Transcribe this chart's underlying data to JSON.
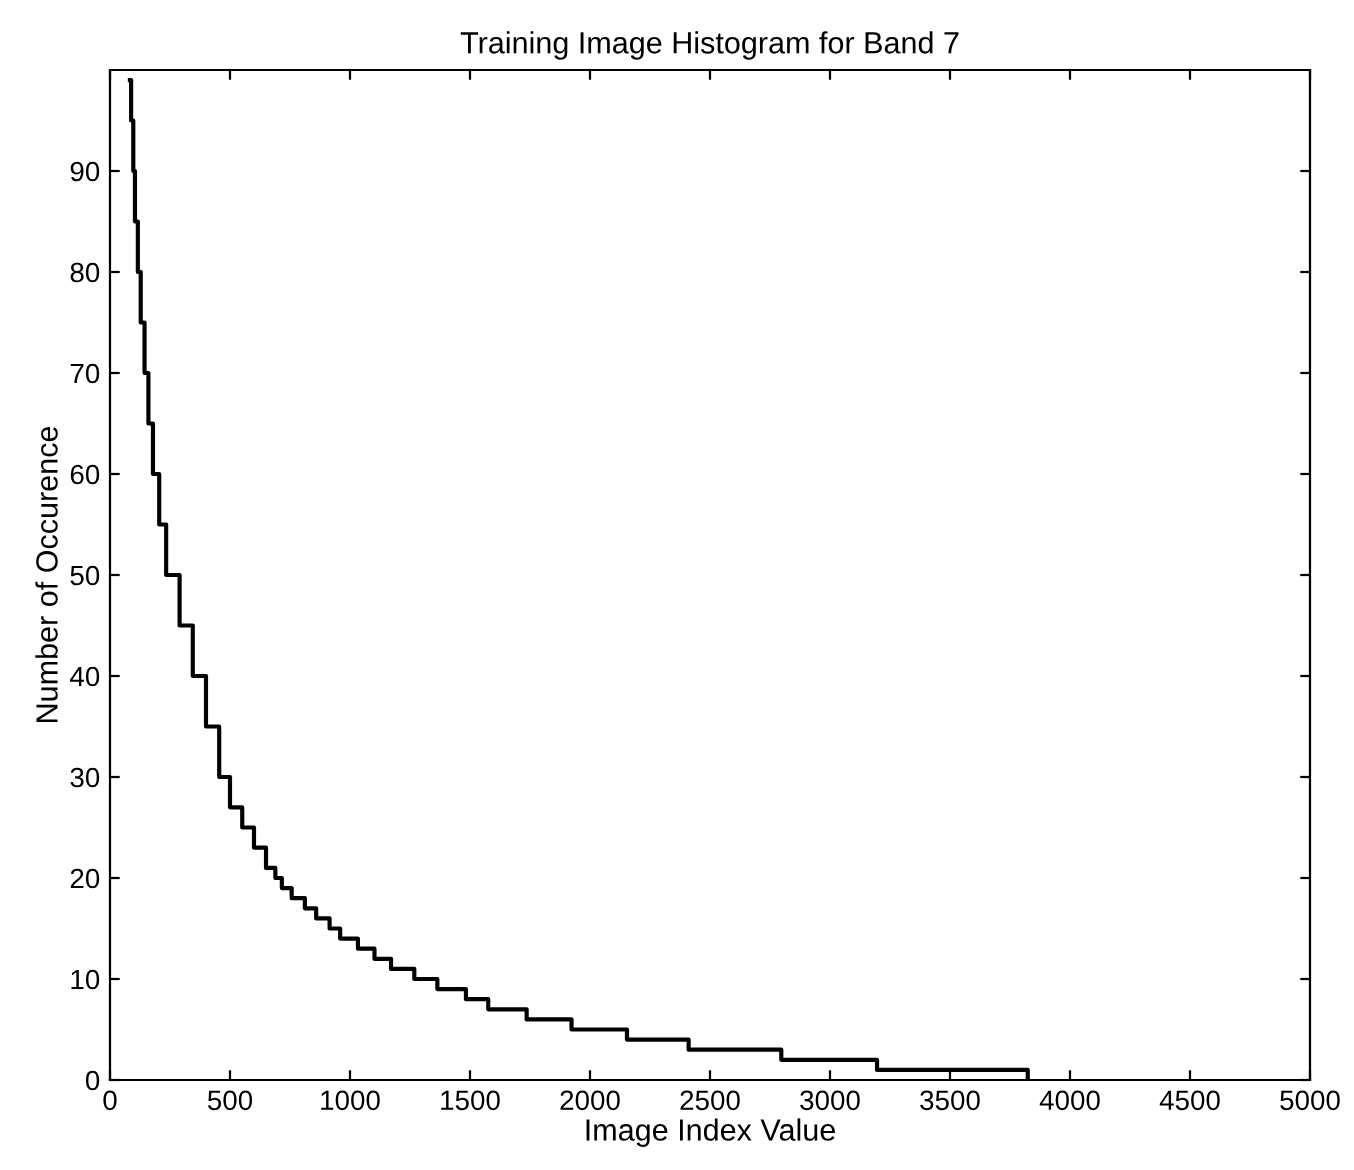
{
  "chart_data": {
    "type": "step",
    "title": "Training Image Histogram for Band 7",
    "xlabel": "Image Index Value",
    "ylabel": "Number of Occurence",
    "series": [
      {
        "color": "#000000",
        "x": [
          83,
          88,
          97,
          104,
          116,
          128,
          144,
          160,
          179,
          205,
          234,
          290,
          345,
          400,
          455,
          500,
          551,
          600,
          650,
          689,
          716,
          757,
          812,
          859,
          915,
          959,
          1033,
          1102,
          1171,
          1268,
          1364,
          1483,
          1576,
          1736,
          1923,
          2154,
          2411,
          2797,
          3196,
          3824
        ],
        "values": [
          99,
          95,
          90,
          85,
          80,
          75,
          70,
          65,
          60,
          55,
          50,
          45,
          40,
          35,
          30,
          27,
          25,
          23,
          21,
          20,
          19,
          18,
          17,
          16,
          15,
          14,
          13,
          12,
          11,
          10,
          9,
          8,
          7,
          6,
          5,
          4,
          3,
          2,
          1,
          0
        ]
      }
    ],
    "xlim": [
      0,
      5000
    ],
    "ylim": [
      0,
      100
    ],
    "xticks": [
      0,
      500,
      1000,
      1500,
      2000,
      2500,
      3000,
      3500,
      4000,
      4500,
      5000
    ],
    "yticks": [
      0,
      10,
      20,
      30,
      40,
      50,
      60,
      70,
      80,
      90
    ],
    "grid": false,
    "line_style": "solid",
    "marker": "none"
  }
}
